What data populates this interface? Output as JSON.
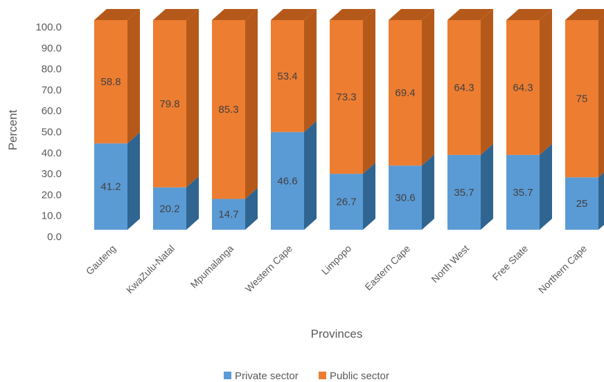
{
  "chart_data": {
    "type": "bar",
    "stacked": true,
    "style": "3d-column",
    "categories": [
      "Gauteng",
      "KwaZulu-Natal",
      "Mpumalanga",
      "Western Cape",
      "Limpopo",
      "Eastern Cape",
      "North West",
      "Free State",
      "Northern Cape"
    ],
    "series": [
      {
        "name": "Private sector",
        "color": "#5b9bd5",
        "side_color": "#2f6590",
        "values": [
          41.2,
          20.2,
          14.7,
          46.6,
          26.7,
          30.6,
          35.7,
          35.7,
          25
        ]
      },
      {
        "name": "Public sector",
        "color": "#ed7d31",
        "side_color": "#b5591b",
        "values": [
          58.8,
          79.8,
          85.3,
          53.4,
          73.3,
          69.4,
          64.3,
          64.3,
          75
        ]
      }
    ],
    "data_labels": [
      [
        "41.2",
        "20.2",
        "14.7",
        "46.6",
        "26.7",
        "30.6",
        "35.7",
        "35.7",
        "25"
      ],
      [
        "58.8",
        "79.8",
        "85.3",
        "53.4",
        "73.3",
        "69.4",
        "64.3",
        "64.3",
        "75"
      ]
    ],
    "y_ticks": [
      "0.0",
      "10.0",
      "20.0",
      "30.0",
      "40.0",
      "50.0",
      "60.0",
      "70.0",
      "80.0",
      "90.0",
      "100.0"
    ],
    "ylim": [
      0,
      100
    ],
    "xlabel": "Provinces",
    "ylabel": "Percent",
    "grid": false,
    "legend_position": "bottom"
  }
}
